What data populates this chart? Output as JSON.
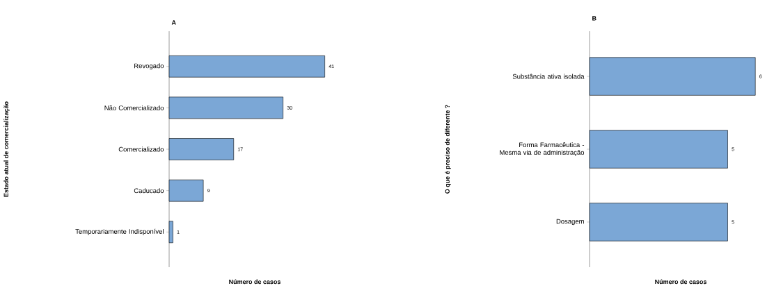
{
  "chart_data": [
    {
      "type": "bar",
      "orientation": "horizontal",
      "title": "A",
      "xlabel": "Número de casos",
      "ylabel": "Estado atual de comercialização",
      "categories": [
        "Revogado",
        "Não Comercializado",
        "Comercializado",
        "Caducado",
        "Temporariamente Indisponível"
      ],
      "values": [
        41,
        30,
        17,
        9,
        1
      ],
      "color": "#7ba7d6",
      "data_labels": true
    },
    {
      "type": "bar",
      "orientation": "horizontal",
      "title": "B",
      "xlabel": "Número de casos",
      "ylabel": "O que é preciso de diferente ?",
      "categories": [
        "Substância ativa isolada",
        "Forma Farmacêutica - Mesma via de administração",
        "Dosagem"
      ],
      "values": [
        6,
        5,
        5
      ],
      "color": "#7ba7d6",
      "data_labels": true
    }
  ]
}
